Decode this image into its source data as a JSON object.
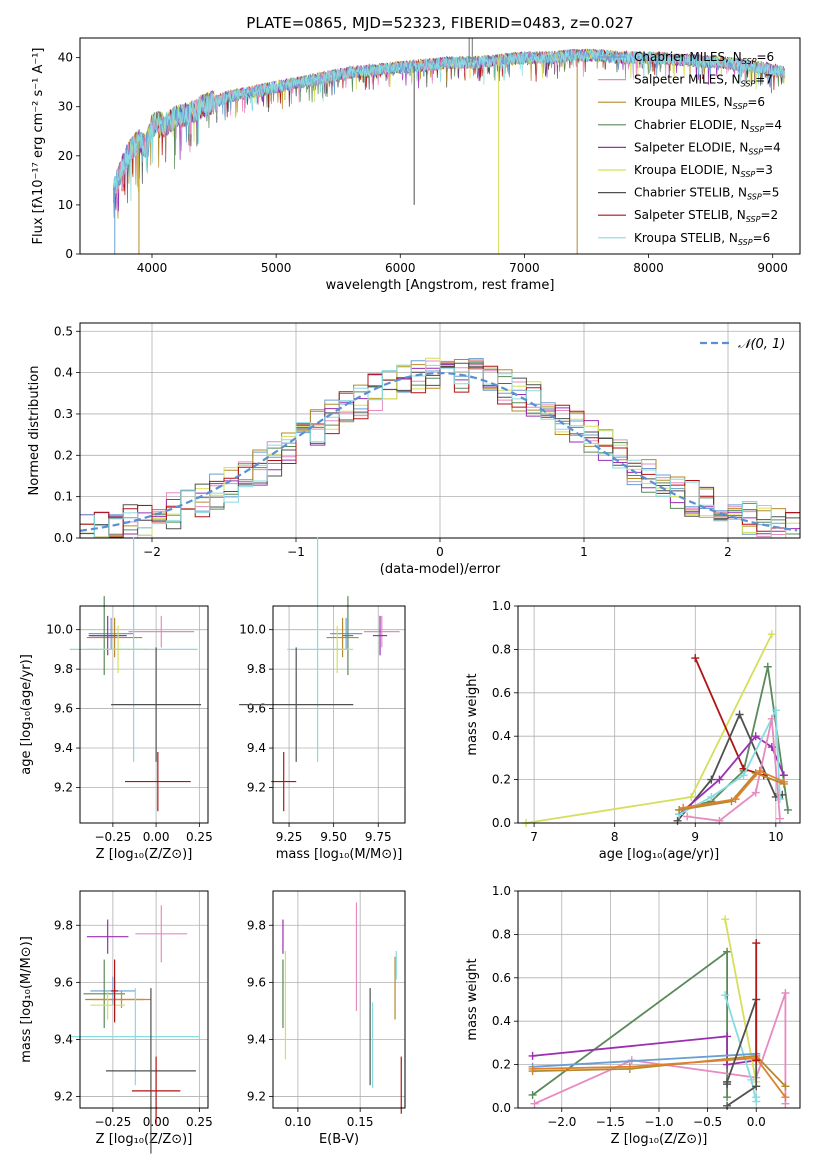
{
  "colors": {
    "Chabrier MILES": "#6a9fd3",
    "Salpeter MILES": "#e88ac0",
    "Kroupa MILES": "#b58a2a",
    "Chabrier ELODIE": "#5a8a5a",
    "Salpeter ELODIE": "#9a2fb0",
    "Kroupa ELODIE": "#d4e05a",
    "Chabrier STELIB": "#505050",
    "Salpeter STELIB": "#b01515",
    "Kroupa STELIB": "#86dce0",
    "Orange": "#e08030",
    "Normal": "#5a8fd4"
  },
  "chart_data": [
    {
      "id": "spectrum",
      "type": "line",
      "title": "PLATE=0865, MJD=52323, FIBERID=0483, z=0.027",
      "xlabel": "wavelength [Angstrom, rest frame]",
      "ylabel": "Flux [fλ10⁻¹⁷ erg cm⁻² s⁻¹ A⁻¹]",
      "xlim": [
        3420,
        9220
      ],
      "ylim": [
        0,
        44
      ],
      "xticks": [
        4000,
        5000,
        6000,
        7000,
        8000,
        9000
      ],
      "yticks": [
        0,
        10,
        20,
        30,
        40
      ],
      "grid": false,
      "legend": "top-right",
      "legend_entries": [
        {
          "model": "Chabrier MILES",
          "n": "6"
        },
        {
          "model": "Salpeter MILES",
          "n": "7"
        },
        {
          "model": "Kroupa MILES",
          "n": "6"
        },
        {
          "model": "Chabrier ELODIE",
          "n": "4"
        },
        {
          "model": "Salpeter ELODIE",
          "n": "4"
        },
        {
          "model": "Kroupa ELODIE",
          "n": "3"
        },
        {
          "model": "Chabrier STELIB",
          "n": "5"
        },
        {
          "model": "Salpeter STELIB",
          "n": "2"
        },
        {
          "model": "Kroupa STELIB",
          "n": "6"
        }
      ],
      "continuum": [
        [
          3690,
          13
        ],
        [
          3750,
          17
        ],
        [
          3800,
          20
        ],
        [
          3850,
          22
        ],
        [
          3900,
          23
        ],
        [
          3950,
          22
        ],
        [
          4000,
          26
        ],
        [
          4050,
          27
        ],
        [
          4100,
          26
        ],
        [
          4200,
          28
        ],
        [
          4300,
          28.5
        ],
        [
          4400,
          30
        ],
        [
          4500,
          31
        ],
        [
          4600,
          32
        ],
        [
          4700,
          32.5
        ],
        [
          4800,
          33
        ],
        [
          4900,
          33.5
        ],
        [
          5000,
          34
        ],
        [
          5200,
          35
        ],
        [
          5400,
          36
        ],
        [
          5600,
          37
        ],
        [
          5800,
          37.5
        ],
        [
          6000,
          38
        ],
        [
          6200,
          38.5
        ],
        [
          6400,
          39
        ],
        [
          6600,
          39
        ],
        [
          6800,
          39.5
        ],
        [
          7000,
          40
        ],
        [
          7200,
          40
        ],
        [
          7400,
          40.5
        ],
        [
          7600,
          40.5
        ],
        [
          7800,
          40
        ],
        [
          8000,
          40
        ],
        [
          8300,
          39.5
        ],
        [
          8600,
          39
        ],
        [
          8900,
          38
        ],
        [
          9100,
          37
        ]
      ],
      "spikes": [
        {
          "x": 3700,
          "y": 0,
          "series": "Chabrier MILES"
        },
        {
          "x": 3895,
          "y": 0,
          "series": "Kroupa MILES"
        },
        {
          "x": 6112,
          "y": 10,
          "series": "Chabrier STELIB"
        },
        {
          "x": 6792,
          "y": 0,
          "series": "Kroupa ELODIE"
        },
        {
          "x": 7425,
          "y": 0,
          "series": "Kroupa MILES"
        }
      ],
      "spike_tops": [
        {
          "x": 6555,
          "y": 44
        },
        {
          "x": 6580,
          "y": 44
        }
      ]
    },
    {
      "id": "residuals",
      "type": "bar",
      "xlabel": "(data-model)/error",
      "ylabel": "Normed distribution",
      "xlim": [
        -2.5,
        2.5
      ],
      "ylim": [
        0,
        0.52
      ],
      "xticks": [
        -2,
        -1,
        0,
        1,
        2
      ],
      "yticks": [
        0.0,
        0.1,
        0.2,
        0.3,
        0.4,
        0.5
      ],
      "grid": true,
      "legend": "top-right",
      "normal_label": "𝒩(0, 1)"
    },
    {
      "id": "age_vs_Z",
      "type": "scatter",
      "xlabel": "Z [log₁₀(Z/Z⊙)]",
      "ylabel": "age  [log₁₀(age/yr)]",
      "xlim": [
        -0.44,
        0.3
      ],
      "ylim": [
        9.02,
        10.12
      ],
      "xticks": [
        -0.25,
        0.0,
        0.25
      ],
      "yticks": [
        9.2,
        9.4,
        9.6,
        9.8,
        10.0
      ],
      "grid": true,
      "points": [
        {
          "series": "Salpeter MILES",
          "x": 0.03,
          "y": 9.99,
          "xerr": 0.19,
          "yerr": 0.08
        },
        {
          "series": "Chabrier MILES",
          "x": -0.26,
          "y": 9.98,
          "xerr": 0.13,
          "yerr": 0.08
        },
        {
          "series": "Kroupa MILES",
          "x": -0.24,
          "y": 9.96,
          "xerr": 0.16,
          "yerr": 0.1
        },
        {
          "series": "Chabrier ELODIE",
          "x": -0.3,
          "y": 9.97,
          "xerr": 0.08,
          "yerr": 0.2
        },
        {
          "series": "Salpeter ELODIE",
          "x": -0.28,
          "y": 9.97,
          "xerr": 0.11,
          "yerr": 0.1
        },
        {
          "series": "Kroupa ELODIE",
          "x": -0.22,
          "y": 9.9,
          "xerr": 0.18,
          "yerr": 0.12
        },
        {
          "series": "Kroupa STELIB",
          "x": -0.13,
          "y": 9.9,
          "xerr": 0.37,
          "yerr": 0.57
        },
        {
          "series": "Chabrier STELIB",
          "x": 0.0,
          "y": 9.62,
          "xerr": 0.26,
          "yerr": 0.29
        },
        {
          "series": "Salpeter STELIB",
          "x": 0.01,
          "y": 9.23,
          "xerr": 0.19,
          "yerr": 0.15
        }
      ]
    },
    {
      "id": "age_vs_mass",
      "type": "scatter",
      "xlabel": "mass [log₁₀(M/M⊙)]",
      "ylabel": "",
      "xlim": [
        9.16,
        9.9
      ],
      "ylim": [
        9.02,
        10.12
      ],
      "xticks": [
        9.25,
        9.5,
        9.75
      ],
      "yticks": [
        9.2,
        9.4,
        9.6,
        9.8,
        10.0
      ],
      "grid": true,
      "points": [
        {
          "series": "Salpeter MILES",
          "x": 9.77,
          "y": 9.99,
          "xerr": 0.1,
          "yerr": 0.08
        },
        {
          "series": "Chabrier MILES",
          "x": 9.57,
          "y": 9.98,
          "xerr": 0.09,
          "yerr": 0.08
        },
        {
          "series": "Kroupa MILES",
          "x": 9.55,
          "y": 9.96,
          "xerr": 0.09,
          "yerr": 0.1
        },
        {
          "series": "Chabrier ELODIE",
          "x": 9.58,
          "y": 9.97,
          "xerr": 0.03,
          "yerr": 0.2
        },
        {
          "series": "Salpeter ELODIE",
          "x": 9.76,
          "y": 9.97,
          "xerr": 0.04,
          "yerr": 0.1
        },
        {
          "series": "Kroupa ELODIE",
          "x": 9.52,
          "y": 9.9,
          "xerr": 0.09,
          "yerr": 0.12
        },
        {
          "series": "Kroupa STELIB",
          "x": 9.41,
          "y": 9.9,
          "xerr": 0.17,
          "yerr": 0.57
        },
        {
          "series": "Chabrier STELIB",
          "x": 9.29,
          "y": 9.62,
          "xerr": 0.32,
          "yerr": 0.29
        },
        {
          "series": "Salpeter STELIB",
          "x": 9.22,
          "y": 9.23,
          "xerr": 0.07,
          "yerr": 0.15
        }
      ]
    },
    {
      "id": "weight_vs_age",
      "type": "line",
      "xlabel": "age  [log₁₀(age/yr)]",
      "ylabel": "mass weight",
      "xlim": [
        6.8,
        10.3
      ],
      "ylim": [
        0.0,
        1.0
      ],
      "xticks": [
        7,
        8,
        9,
        10
      ],
      "yticks": [
        0.0,
        0.2,
        0.4,
        0.6,
        0.8,
        1.0
      ],
      "grid": true,
      "series": [
        {
          "name": "Kroupa ELODIE",
          "x": [
            6.9,
            8.95,
            9.95
          ],
          "y": [
            0.0,
            0.12,
            0.87
          ]
        },
        {
          "name": "Chabrier ELODIE",
          "x": [
            8.8,
            9.2,
            9.6,
            9.9,
            10.15
          ],
          "y": [
            0.06,
            0.1,
            0.24,
            0.72,
            0.06
          ]
        },
        {
          "name": "Salpeter STELIB",
          "x": [
            9.0,
            9.6,
            9.85
          ],
          "y": [
            0.76,
            0.25,
            0.22
          ]
        },
        {
          "name": "Chabrier STELIB",
          "x": [
            8.78,
            9.2,
            9.55,
            10.0,
            10.08
          ],
          "y": [
            0.01,
            0.2,
            0.5,
            0.12,
            0.13
          ]
        },
        {
          "name": "Salpeter ELODIE",
          "x": [
            8.8,
            9.3,
            9.75,
            9.95,
            10.1
          ],
          "y": [
            0.04,
            0.2,
            0.4,
            0.35,
            0.22
          ]
        },
        {
          "name": "Kroupa STELIB",
          "x": [
            8.8,
            9.2,
            9.6,
            10.0,
            10.05
          ],
          "y": [
            0.04,
            0.12,
            0.22,
            0.52,
            0.11
          ]
        },
        {
          "name": "Salpeter MILES",
          "x": [
            8.9,
            9.3,
            9.75,
            9.95,
            10.05
          ],
          "y": [
            0.03,
            0.01,
            0.14,
            0.48,
            0.02
          ]
        },
        {
          "name": "Kroupa MILES",
          "x": [
            8.8,
            9.45,
            9.75,
            10.1
          ],
          "y": [
            0.06,
            0.1,
            0.23,
            0.18
          ]
        },
        {
          "name": "Orange",
          "x": [
            8.85,
            9.5,
            9.8,
            10.1
          ],
          "y": [
            0.07,
            0.11,
            0.24,
            0.19
          ]
        }
      ]
    },
    {
      "id": "mass_vs_Z",
      "type": "scatter",
      "xlabel": "Z [log₁₀(Z/Z⊙)]",
      "ylabel": "mass [log₁₀(M/M⊙)]",
      "xlim": [
        -0.44,
        0.3
      ],
      "ylim": [
        9.16,
        9.92
      ],
      "xticks": [
        -0.25,
        0.0,
        0.25
      ],
      "yticks": [
        9.2,
        9.4,
        9.6,
        9.8
      ],
      "grid": true,
      "points": [
        {
          "series": "Salpeter MILES",
          "x": 0.03,
          "y": 9.77,
          "xerr": 0.15,
          "yerr": 0.1
        },
        {
          "series": "Salpeter ELODIE",
          "x": -0.28,
          "y": 9.76,
          "xerr": 0.12,
          "yerr": 0.06
        },
        {
          "series": "Chabrier MILES",
          "x": -0.25,
          "y": 9.57,
          "xerr": 0.13,
          "yerr": 0.05
        },
        {
          "series": "Chabrier ELODIE",
          "x": -0.3,
          "y": 9.56,
          "xerr": 0.12,
          "yerr": 0.12
        },
        {
          "series": "Kroupa MILES",
          "x": -0.24,
          "y": 9.54,
          "xerr": 0.17,
          "yerr": 0.07
        },
        {
          "series": "Orange",
          "x": -0.2,
          "y": 9.54,
          "xerr": 0.17,
          "yerr": 0.03
        },
        {
          "series": "Kroupa ELODIE",
          "x": -0.28,
          "y": 9.52,
          "xerr": 0.1,
          "yerr": 0.05
        },
        {
          "series": "Salpeter STELIB",
          "x": -0.24,
          "y": 9.57,
          "xerr": 0.02,
          "yerr": 0.11
        },
        {
          "series": "Kroupa STELIB",
          "x": -0.12,
          "y": 9.41,
          "xerr": 0.37,
          "yerr": 0.17
        },
        {
          "series": "Chabrier STELIB",
          "x": -0.03,
          "y": 9.29,
          "xerr": 0.26,
          "yerr": 0.29
        },
        {
          "series": "Salpeter STELIB",
          "x": 0.0,
          "y": 9.22,
          "xerr": 0.14,
          "yerr": 0.12
        }
      ]
    },
    {
      "id": "mass_vs_ebv",
      "type": "scatter",
      "xlabel": "E(B-V)",
      "ylabel": "",
      "xlim": [
        0.08,
        0.186
      ],
      "ylim": [
        9.16,
        9.92
      ],
      "xticks": [
        0.1,
        0.15
      ],
      "yticks": [
        9.2,
        9.4,
        9.6,
        9.8
      ],
      "grid": true,
      "points": [
        {
          "series": "Salpeter ELODIE",
          "x": 0.088,
          "y": 9.76,
          "yerr": 0.06
        },
        {
          "series": "Kroupa ELODIE",
          "x": 0.09,
          "y": 9.52,
          "yerr": 0.19
        },
        {
          "series": "Chabrier ELODIE",
          "x": 0.088,
          "y": 9.56,
          "yerr": 0.12
        },
        {
          "series": "Salpeter MILES",
          "x": 0.147,
          "y": 9.69,
          "yerr": 0.19
        },
        {
          "series": "Chabrier STELIB",
          "x": 0.158,
          "y": 9.41,
          "yerr": 0.17
        },
        {
          "series": "Kroupa STELIB",
          "x": 0.16,
          "y": 9.38,
          "yerr": 0.15
        },
        {
          "series": "Kroupa MILES",
          "x": 0.178,
          "y": 9.58,
          "yerr": 0.11
        },
        {
          "series": "Kroupa STELIB",
          "x": 0.179,
          "y": 9.66,
          "yerr": 0.05
        },
        {
          "series": "Salpeter STELIB",
          "x": 0.183,
          "y": 9.24,
          "yerr": 0.1
        }
      ]
    },
    {
      "id": "weight_vs_Z",
      "type": "line",
      "xlabel": "Z [log₁₀(Z/Z⊙)]",
      "ylabel": "mass weight",
      "xlim": [
        -2.45,
        0.45
      ],
      "ylim": [
        0.0,
        1.0
      ],
      "xticks": [
        -2.0,
        -1.5,
        -1.0,
        -0.5,
        0.0
      ],
      "yticks": [
        0.0,
        0.2,
        0.4,
        0.6,
        0.8,
        1.0
      ],
      "grid": true,
      "series": [
        {
          "name": "Chabrier ELODIE",
          "x": [
            -2.3,
            -0.3,
            -0.3,
            -0.3
          ],
          "y": [
            0.06,
            0.72,
            0.12,
            0.05
          ]
        },
        {
          "name": "Salpeter ELODIE",
          "x": [
            -2.3,
            -0.3,
            -0.3,
            0.0
          ],
          "y": [
            0.24,
            0.33,
            0.2,
            0.22
          ]
        },
        {
          "name": "Salpeter MILES",
          "x": [
            -2.28,
            -1.28,
            0.0,
            0.3,
            0.3
          ],
          "y": [
            0.02,
            0.22,
            0.14,
            0.53,
            0.02
          ]
        },
        {
          "name": "Kroupa ELODIE",
          "x": [
            -0.32,
            0.0
          ],
          "y": [
            0.87,
            0.12
          ]
        },
        {
          "name": "Kroupa STELIB",
          "x": [
            -0.32,
            -0.05,
            0.0,
            0.0
          ],
          "y": [
            0.52,
            0.13,
            0.03,
            0.05
          ]
        },
        {
          "name": "Chabrier MILES",
          "x": [
            -2.3,
            0.0
          ],
          "y": [
            0.19,
            0.25
          ]
        },
        {
          "name": "Kroupa MILES",
          "x": [
            -2.3,
            -1.3,
            0.0,
            0.3
          ],
          "y": [
            0.17,
            0.18,
            0.24,
            0.1
          ]
        },
        {
          "name": "Orange",
          "x": [
            -2.3,
            -1.3,
            0.0,
            0.3
          ],
          "y": [
            0.18,
            0.19,
            0.23,
            0.05
          ]
        },
        {
          "name": "Chabrier STELIB",
          "x": [
            -0.3,
            0.0,
            0.0,
            -0.3,
            -0.3
          ],
          "y": [
            0.01,
            0.1,
            0.5,
            0.12,
            0.11
          ]
        },
        {
          "name": "Salpeter STELIB",
          "x": [
            0.0,
            0.0
          ],
          "y": [
            0.76,
            0.22
          ]
        }
      ]
    }
  ]
}
